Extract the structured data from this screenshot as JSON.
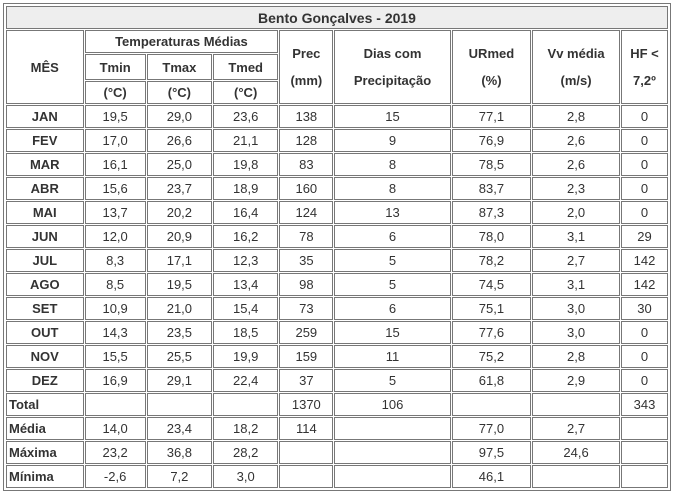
{
  "title": "Bento Gonçalves - 2019",
  "headers": {
    "month": "MÊS",
    "temps_group": "Temperaturas Médias",
    "tmin": "Tmin",
    "tmin_unit": "(°C)",
    "tmax": "Tmax",
    "tmax_unit": "(°C)",
    "tmed": "Tmed",
    "tmed_unit": "(°C)",
    "prec": "Prec",
    "prec_unit": "(mm)",
    "days": "Dias com",
    "days2": "Precipitação",
    "urmed": "URmed",
    "urmed_unit": "(%)",
    "vv": "Vv média",
    "vv_unit": "(m/s)",
    "hf": "HF <",
    "hf2": "7,2º"
  },
  "rows": [
    [
      "JAN",
      "19,5",
      "29,0",
      "23,6",
      "138",
      "15",
      "77,1",
      "2,8",
      "0"
    ],
    [
      "FEV",
      "17,0",
      "26,6",
      "21,1",
      "128",
      "9",
      "76,9",
      "2,6",
      "0"
    ],
    [
      "MAR",
      "16,1",
      "25,0",
      "19,8",
      "83",
      "8",
      "78,5",
      "2,6",
      "0"
    ],
    [
      "ABR",
      "15,6",
      "23,7",
      "18,9",
      "160",
      "8",
      "83,7",
      "2,3",
      "0"
    ],
    [
      "MAI",
      "13,7",
      "20,2",
      "16,4",
      "124",
      "13",
      "87,3",
      "2,0",
      "0"
    ],
    [
      "JUN",
      "12,0",
      "20,9",
      "16,2",
      "78",
      "6",
      "78,0",
      "3,1",
      "29"
    ],
    [
      "JUL",
      "8,3",
      "17,1",
      "12,3",
      "35",
      "5",
      "78,2",
      "2,7",
      "142"
    ],
    [
      "AGO",
      "8,5",
      "19,5",
      "13,4",
      "98",
      "5",
      "74,5",
      "3,1",
      "142"
    ],
    [
      "SET",
      "10,9",
      "21,0",
      "15,4",
      "73",
      "6",
      "75,1",
      "3,0",
      "30"
    ],
    [
      "OUT",
      "14,3",
      "23,5",
      "18,5",
      "259",
      "15",
      "77,6",
      "3,0",
      "0"
    ],
    [
      "NOV",
      "15,5",
      "25,5",
      "19,9",
      "159",
      "11",
      "75,2",
      "2,8",
      "0"
    ],
    [
      "DEZ",
      "16,9",
      "29,1",
      "22,4",
      "37",
      "5",
      "61,8",
      "2,9",
      "0"
    ]
  ],
  "summary": [
    [
      "Total",
      "",
      "",
      "",
      "1370",
      "106",
      "",
      "",
      "343"
    ],
    [
      "Média",
      "14,0",
      "23,4",
      "18,2",
      "114",
      "",
      "77,0",
      "2,7",
      ""
    ],
    [
      "Máxima",
      "23,2",
      "36,8",
      "28,2",
      "",
      "",
      "97,5",
      "24,6",
      ""
    ],
    [
      "Mínima",
      "-2,6",
      "7,2",
      "3,0",
      "",
      "",
      "46,1",
      "",
      ""
    ]
  ]
}
